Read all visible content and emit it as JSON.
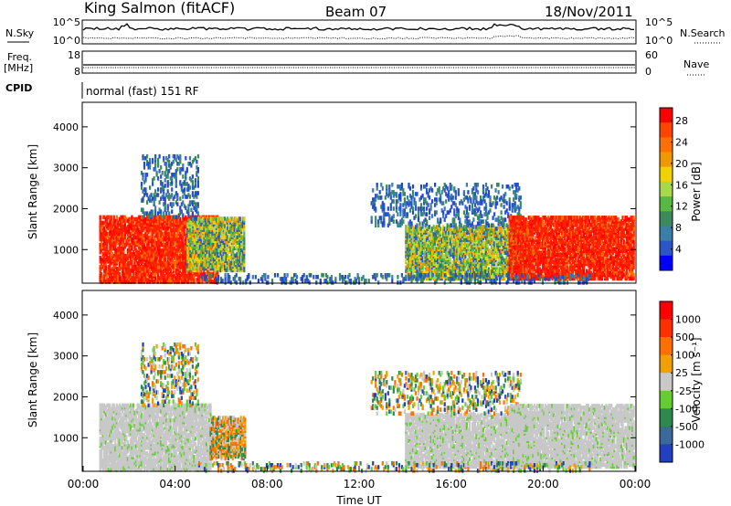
{
  "header": {
    "station": "King Salmon (fitACF)",
    "beam": "Beam 07",
    "date": "18/Nov/2011"
  },
  "top_panels": {
    "nsky_label": "N.Sky",
    "nsearch_label": "N.Search",
    "noise_ticks_left": [
      "10^5",
      "10^0"
    ],
    "noise_ticks_right": [
      "10^5",
      "10^0"
    ],
    "freq_label": "Freq.",
    "freq_unit": "[MHz]",
    "freq_ticks": [
      "18",
      "8"
    ],
    "nave_label": "Nave",
    "nave_ticks": [
      "60",
      "0"
    ],
    "cpid_label": "CPID",
    "cpid_text": "normal (fast) 151 RF"
  },
  "chart_data": [
    {
      "type": "heatmap",
      "name_panel": "power",
      "xlabel": "",
      "ylabel": "Slant Range [km]",
      "x_range_hours": [
        0,
        24
      ],
      "ylim": [
        180,
        4600
      ],
      "y_ticks": [
        1000,
        2000,
        3000,
        4000
      ],
      "colorbar": {
        "label": "Power [dB]",
        "ticks": [
          4,
          8,
          12,
          16,
          20,
          24,
          28
        ],
        "colors": [
          "#0000ff",
          "#2c55c8",
          "#3a7fa8",
          "#3c8a5c",
          "#58b844",
          "#a8d84c",
          "#f0d200",
          "#f09800",
          "#ff7000",
          "#ff4400",
          "#ff0000"
        ]
      },
      "echo_regions": [
        {
          "t0": 0.7,
          "t1": 5.8,
          "r0": 220,
          "r1": 1800,
          "level": "high"
        },
        {
          "t0": 4.5,
          "t1": 7.0,
          "r0": 500,
          "r1": 1800,
          "level": "medium"
        },
        {
          "t0": 2.5,
          "t1": 5.0,
          "r0": 1800,
          "r1": 3300,
          "level": "low"
        },
        {
          "t0": 14.0,
          "t1": 19.5,
          "r0": 300,
          "r1": 1600,
          "level": "medium"
        },
        {
          "t0": 12.5,
          "t1": 19.0,
          "r0": 1600,
          "r1": 2600,
          "level": "low"
        },
        {
          "t0": 18.5,
          "t1": 23.9,
          "r0": 300,
          "r1": 1800,
          "level": "high"
        },
        {
          "t0": 5.0,
          "t1": 22.0,
          "r0": 200,
          "r1": 400,
          "level": "low"
        }
      ]
    },
    {
      "type": "heatmap",
      "name_panel": "velocity",
      "xlabel": "Time UT",
      "ylabel": "Slant Range [km]",
      "x_range_hours": [
        0,
        24
      ],
      "x_ticks": [
        "00:00",
        "04:00",
        "08:00",
        "12:00",
        "16:00",
        "20:00",
        "00:00"
      ],
      "ylim": [
        180,
        4600
      ],
      "y_ticks": [
        1000,
        2000,
        3000,
        4000
      ],
      "colorbar": {
        "label": "Velocity [m s⁻¹]",
        "ticks": [
          1000,
          500,
          100,
          25,
          -25,
          -100,
          -500,
          -1000
        ],
        "colors": [
          "#2040c0",
          "#3a6a9a",
          "#2e8a4c",
          "#66cc33",
          "#c8c8c8",
          "#f0a000",
          "#ff7000",
          "#ff3000",
          "#ff0000"
        ]
      },
      "echo_regions": [
        {
          "t0": 0.7,
          "t1": 5.5,
          "r0": 220,
          "r1": 1800,
          "level": "ground"
        },
        {
          "t0": 5.5,
          "t1": 7.0,
          "r0": 500,
          "r1": 1500,
          "level": "negative"
        },
        {
          "t0": 2.5,
          "t1": 5.0,
          "r0": 1800,
          "r1": 3300,
          "level": "mixed"
        },
        {
          "t0": 14.0,
          "t1": 19.5,
          "r0": 300,
          "r1": 1600,
          "level": "ground"
        },
        {
          "t0": 12.5,
          "t1": 19.0,
          "r0": 1600,
          "r1": 2600,
          "level": "mixed"
        },
        {
          "t0": 18.5,
          "t1": 23.9,
          "r0": 300,
          "r1": 1800,
          "level": "ground"
        },
        {
          "t0": 5.0,
          "t1": 22.0,
          "r0": 200,
          "r1": 400,
          "level": "mixed"
        }
      ]
    }
  ]
}
